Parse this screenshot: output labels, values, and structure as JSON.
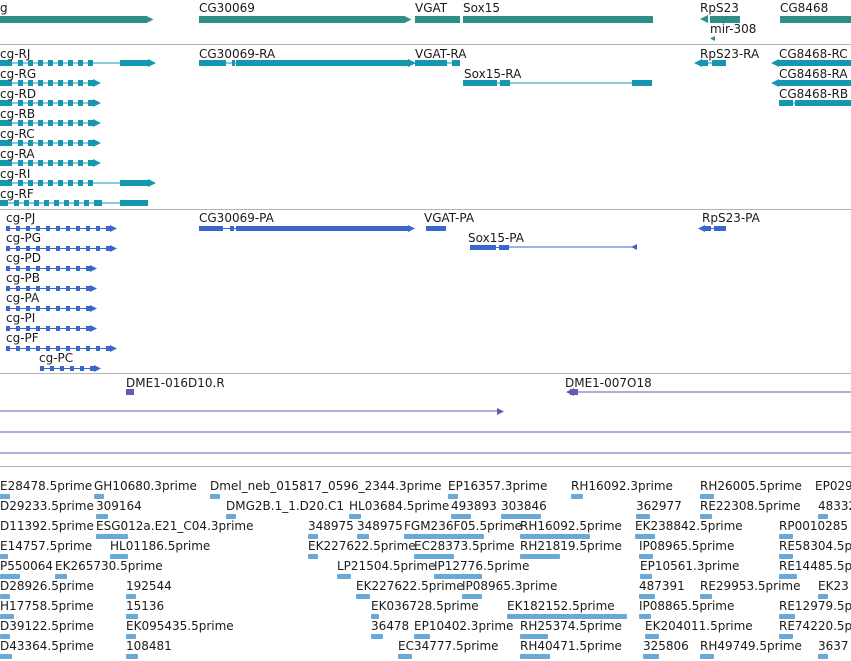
{
  "colors": {
    "gene": "#2e8f88",
    "transcript": "#1597b0",
    "protein": "#3967cc",
    "clone": "#6b56b0",
    "est": "#6aa8d8",
    "separator": "#b4b4b4",
    "text": "#1a1a1a"
  },
  "tracks": {
    "genes": {
      "labels": [
        "g",
        "CG30069",
        "VGAT",
        "Sox15",
        "RpS23",
        "mir-308",
        "CG8468"
      ]
    },
    "transcripts": {
      "labels": [
        "cg-RJ",
        "cg-RG",
        "cg-RD",
        "cg-RB",
        "cg-RC",
        "cg-RA",
        "cg-RI",
        "cg-RF",
        "CG30069-RA",
        "VGAT-RA",
        "Sox15-RA",
        "RpS23-RA",
        "CG8468-RC",
        "CG8468-RA",
        "CG8468-RB"
      ]
    },
    "proteins": {
      "labels": [
        "cg-PJ",
        "cg-PG",
        "cg-PD",
        "cg-PB",
        "cg-PA",
        "cg-PI",
        "cg-PF",
        "cg-PC",
        "CG30069-PA",
        "VGAT-PA",
        "Sox15-PA",
        "RpS23-PA"
      ]
    },
    "clones": {
      "labels": [
        "DME1-016D10.R",
        "DME1-007O18"
      ]
    },
    "ests": {
      "labels": [
        "E28478.5prime",
        "GH10680.3prime",
        "Dmel_neb_015817_0596_2344.3prime",
        "EP16357.3prime",
        "RH16092.3prime",
        "RH26005.5prime",
        "EP029",
        "D29233.5prime",
        "309164",
        "DMG2B.1_1.D20.C1",
        "HL03684.5prime",
        "493893",
        "303846",
        "362977",
        "RE22308.5prime",
        "48332",
        "D11392.5prime",
        "ESG012a.E21_C04.3prime",
        "348975",
        "348975",
        "FGM236F05.5prime",
        "RH16092.5prime",
        "EK238842.5prime",
        "RP0010285",
        "E14757.5prime",
        "HL01186.5prime",
        "EK227622.5prime",
        "EC28373.5prime",
        "RH21819.5prime",
        "IP08965.5prime",
        "RE58304.5p",
        "P550064",
        "EK265730.5prime",
        "LP21504.5prime",
        "IP12776.5prime",
        "EP10561.3prime",
        "RE14485.5p",
        "D28926.5prime",
        "192544",
        "EK227622.5prime",
        "IP08965.3prime",
        "487391",
        "RE29953.5prime",
        "EK23",
        "H17758.5prime",
        "15136",
        "EK036728.5prime",
        "EK182152.5prime",
        "IP08865.5prime",
        "RE12979.5p",
        "D39122.5prime",
        "EK095435.5prime",
        "36478",
        "EP10402.3prime",
        "RH25374.5prime",
        "EK204011.5prime",
        "RE74220.5p",
        "D43364.5prime",
        "108481",
        "EC34777.5prime",
        "RH40471.5prime",
        "325806",
        "RH49749.5prime",
        "3637"
      ]
    }
  }
}
